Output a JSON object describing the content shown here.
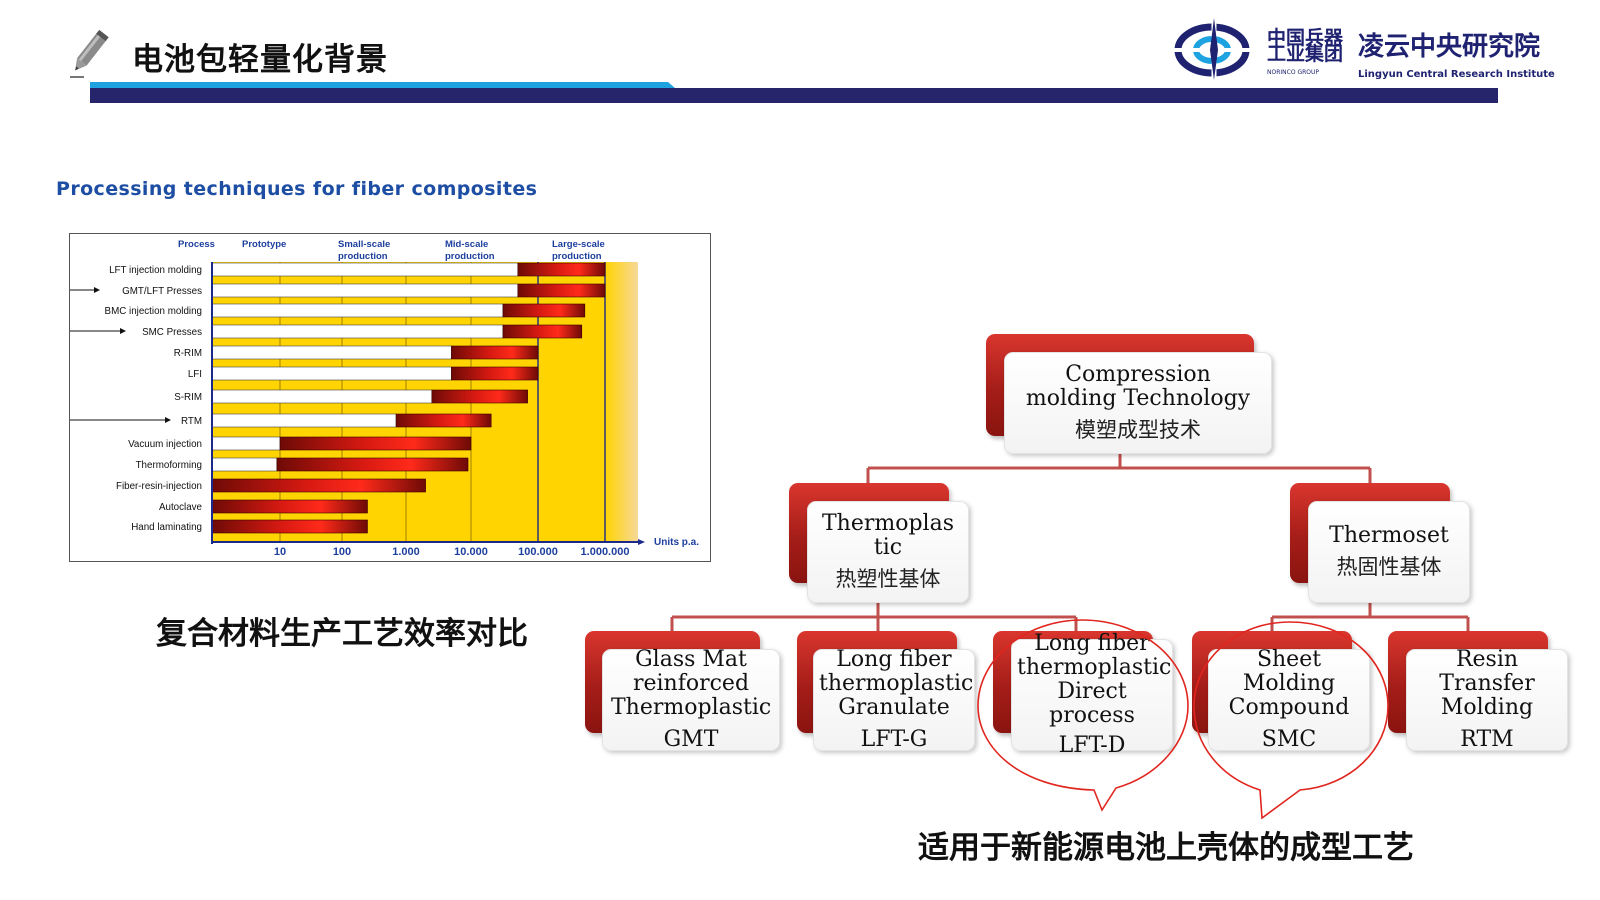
{
  "header": {
    "title": "电池包轻量化背景",
    "logo": {
      "cn_group": "中国兵器 工业集团",
      "cn_institute": "凌云中央研究院",
      "en_group": "NORINCO GROUP",
      "en_institute": "Lingyun Central Research Institute"
    },
    "colors": {
      "bar_dark": "#26256b",
      "bar_light": "#1ea2e0"
    }
  },
  "chart_heading": "Processing techniques for fiber composites",
  "chart_caption": "复合材料生产工艺效率对比",
  "chart_data": {
    "type": "bar",
    "column_headers": [
      "Process",
      "Prototype",
      "Small-scale production",
      "Mid-scale production",
      "Large-scale production"
    ],
    "x_scale": "log",
    "x_ticks": [
      "10",
      "100",
      "1.000",
      "10.000",
      "100.000",
      "1.000.000"
    ],
    "x_unit_label": "Units p.a.",
    "categories": [
      "LFT injection molding",
      "GMT/LFT Presses",
      "BMC injection molding",
      "SMC Presses",
      "R-RIM",
      "LFI",
      "S-RIM",
      "RTM",
      "Vacuum injection",
      "Thermoforming",
      "Fiber-resin-injection",
      "Autoclave",
      "Hand laminating"
    ],
    "white_end": [
      50000,
      50000,
      30000,
      30000,
      5000,
      5000,
      2500,
      700,
      10,
      9,
      1,
      1,
      1
    ],
    "red_end": [
      1000000,
      1000000,
      500000,
      450000,
      100000,
      100000,
      70000,
      20000,
      10000,
      9000,
      2000,
      250,
      250
    ],
    "arrows": [
      "GMT/LFT Presses",
      "SMC Presses",
      "RTM"
    ],
    "colors": {
      "bg": "#ffd400",
      "bar_red": "#c8100b",
      "bar_white": "#ffffff",
      "fade": "#f7d27a"
    }
  },
  "tree": {
    "root": {
      "en": "Compression molding Technology",
      "cn": "模塑成型技术"
    },
    "left": {
      "en": "Thermoplastic",
      "cn": "热塑性基体"
    },
    "right": {
      "en": "Thermoset",
      "cn": "热固性基体"
    },
    "leaves": [
      {
        "en": "Glass Mat reinforced Thermoplastic",
        "abbr": "GMT"
      },
      {
        "en": "Long fiber thermoplastic Granulate",
        "abbr": "LFT-G"
      },
      {
        "en": "Long fiber thermoplastic Direct process",
        "abbr": "LFT-D"
      },
      {
        "en": "Sheet Molding Compound",
        "abbr": "SMC"
      },
      {
        "en": "Resin Transfer Molding",
        "abbr": "RTM"
      }
    ],
    "line_color": "#c0504d"
  },
  "bottom_caption": "适用于新能源电池上壳体的成型工艺"
}
